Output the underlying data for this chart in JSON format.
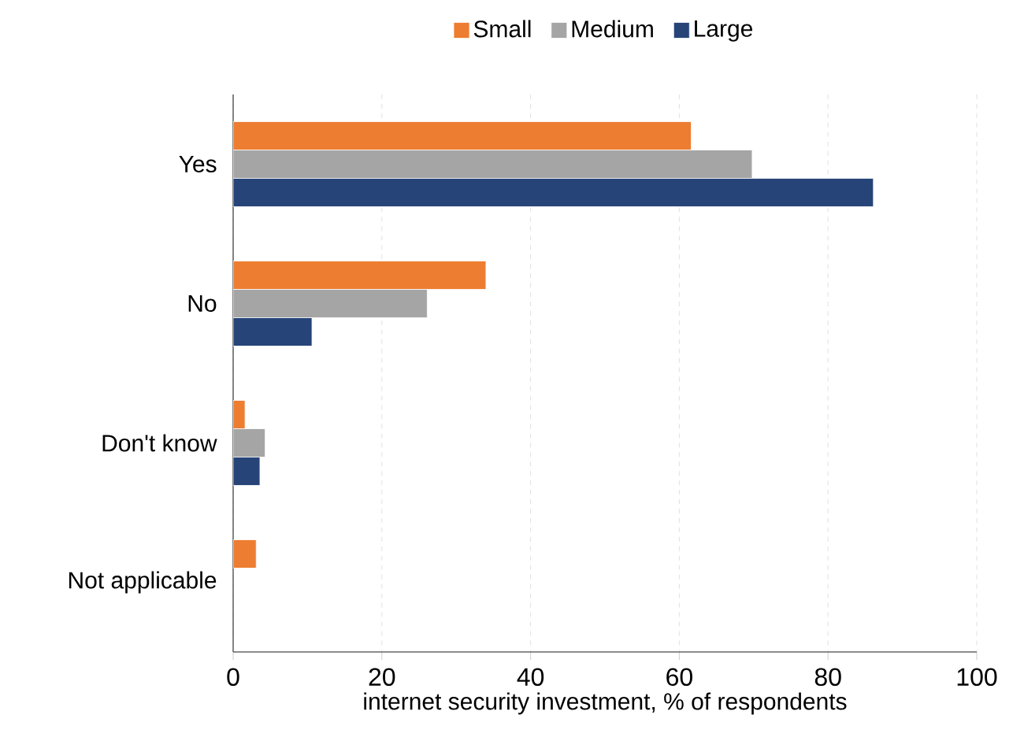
{
  "chart_data": {
    "type": "bar",
    "orientation": "horizontal",
    "categories": [
      "Yes",
      "No",
      "Don't know",
      "Not applicable"
    ],
    "series": [
      {
        "name": "Small",
        "color": "#ed7d31",
        "values": [
          61.6,
          34.0,
          1.6,
          3.1
        ]
      },
      {
        "name": "Medium",
        "color": "#a5a5a5",
        "values": [
          69.8,
          26.1,
          4.3,
          null
        ]
      },
      {
        "name": "Large",
        "color": "#264478",
        "values": [
          86.1,
          10.6,
          3.6,
          null
        ]
      }
    ],
    "xlim": [
      0,
      100
    ],
    "xticks": [
      0,
      20,
      40,
      60,
      80,
      100
    ],
    "xlabel": "internet security investment, % of respondents",
    "grid": "x",
    "legend": "top"
  }
}
